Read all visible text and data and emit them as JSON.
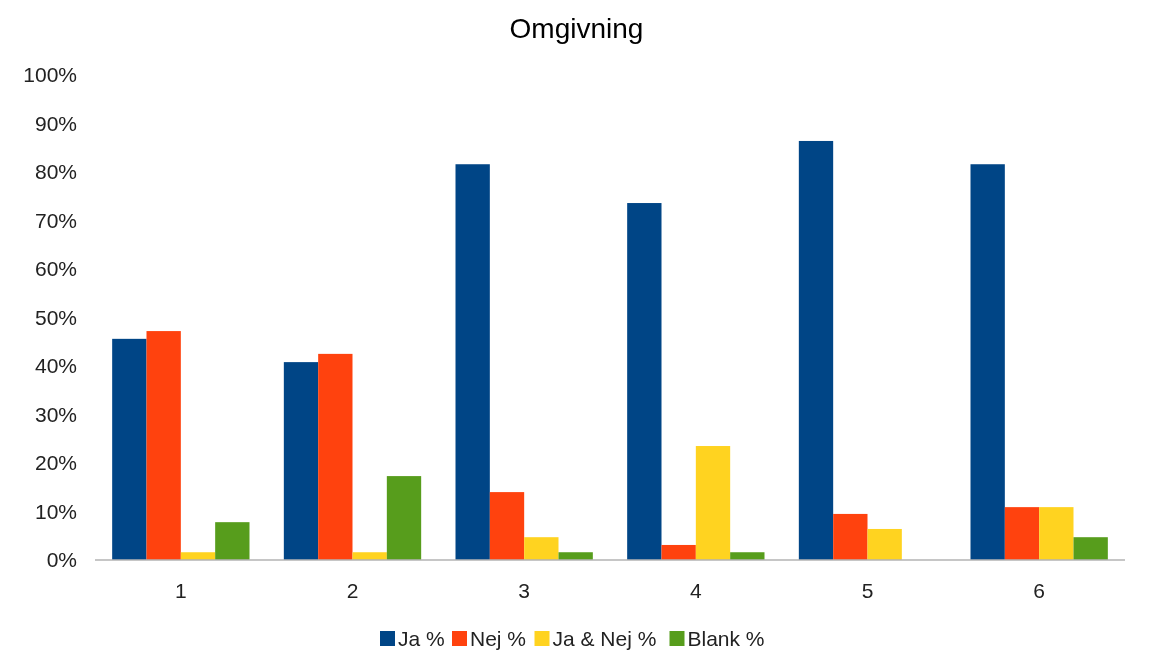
{
  "chart_data": {
    "type": "bar",
    "title": "Omgivning",
    "categories": [
      "1",
      "2",
      "3",
      "4",
      "5",
      "6"
    ],
    "series": [
      {
        "name": "Ja %",
        "color": "#004586",
        "values": [
          45.6,
          40.8,
          81.6,
          73.6,
          86.4,
          81.6
        ]
      },
      {
        "name": "Nej %",
        "color": "#ff420e",
        "values": [
          47.2,
          42.5,
          14.0,
          3.1,
          9.5,
          10.9
        ]
      },
      {
        "name": "Ja & Nej %",
        "color": "#ffd320",
        "values": [
          1.6,
          1.6,
          4.7,
          23.5,
          6.4,
          10.9
        ]
      },
      {
        "name": "Blank %",
        "color": "#579d1c",
        "values": [
          7.8,
          17.3,
          1.6,
          1.6,
          0,
          4.7
        ]
      }
    ],
    "ylim": [
      0,
      100
    ],
    "yticks": [
      {
        "value": 0,
        "label": "0%"
      },
      {
        "value": 10,
        "label": "10%"
      },
      {
        "value": 20,
        "label": "20%"
      },
      {
        "value": 30,
        "label": "30%"
      },
      {
        "value": 40,
        "label": "40%"
      },
      {
        "value": 50,
        "label": "50%"
      },
      {
        "value": 60,
        "label": "60%"
      },
      {
        "value": 70,
        "label": "70%"
      },
      {
        "value": 80,
        "label": "80%"
      },
      {
        "value": 90,
        "label": "90%"
      },
      {
        "value": 100,
        "label": "100%"
      }
    ],
    "grid": false,
    "legend": "bottom"
  }
}
